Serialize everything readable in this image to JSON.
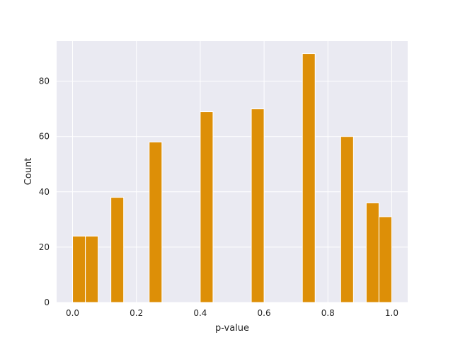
{
  "chart_data": {
    "type": "bar",
    "title": "",
    "xlabel": "p-value",
    "ylabel": "Count",
    "xlim": [
      -0.05,
      1.05
    ],
    "ylim": [
      0,
      94.5
    ],
    "bin_width": 0.04,
    "xticks": [
      0.0,
      0.2,
      0.4,
      0.6,
      0.8,
      1.0
    ],
    "xtick_labels": [
      "0.0",
      "0.2",
      "0.4",
      "0.6",
      "0.8",
      "1.0"
    ],
    "yticks": [
      0,
      20,
      40,
      60,
      80
    ],
    "ytick_labels": [
      "0",
      "20",
      "40",
      "60",
      "80"
    ],
    "grid": true,
    "background_color": "#eaeaf2",
    "bar_color": "#dd8f07",
    "bins": [
      {
        "x_start": 0.0,
        "x_end": 0.04,
        "count": 24
      },
      {
        "x_start": 0.04,
        "x_end": 0.08,
        "count": 24
      },
      {
        "x_start": 0.12,
        "x_end": 0.16,
        "count": 38
      },
      {
        "x_start": 0.24,
        "x_end": 0.28,
        "count": 58
      },
      {
        "x_start": 0.4,
        "x_end": 0.44,
        "count": 69
      },
      {
        "x_start": 0.56,
        "x_end": 0.6,
        "count": 70
      },
      {
        "x_start": 0.72,
        "x_end": 0.76,
        "count": 90
      },
      {
        "x_start": 0.84,
        "x_end": 0.88,
        "count": 60
      },
      {
        "x_start": 0.92,
        "x_end": 0.96,
        "count": 36
      },
      {
        "x_start": 0.96,
        "x_end": 1.0,
        "count": 31
      }
    ]
  }
}
